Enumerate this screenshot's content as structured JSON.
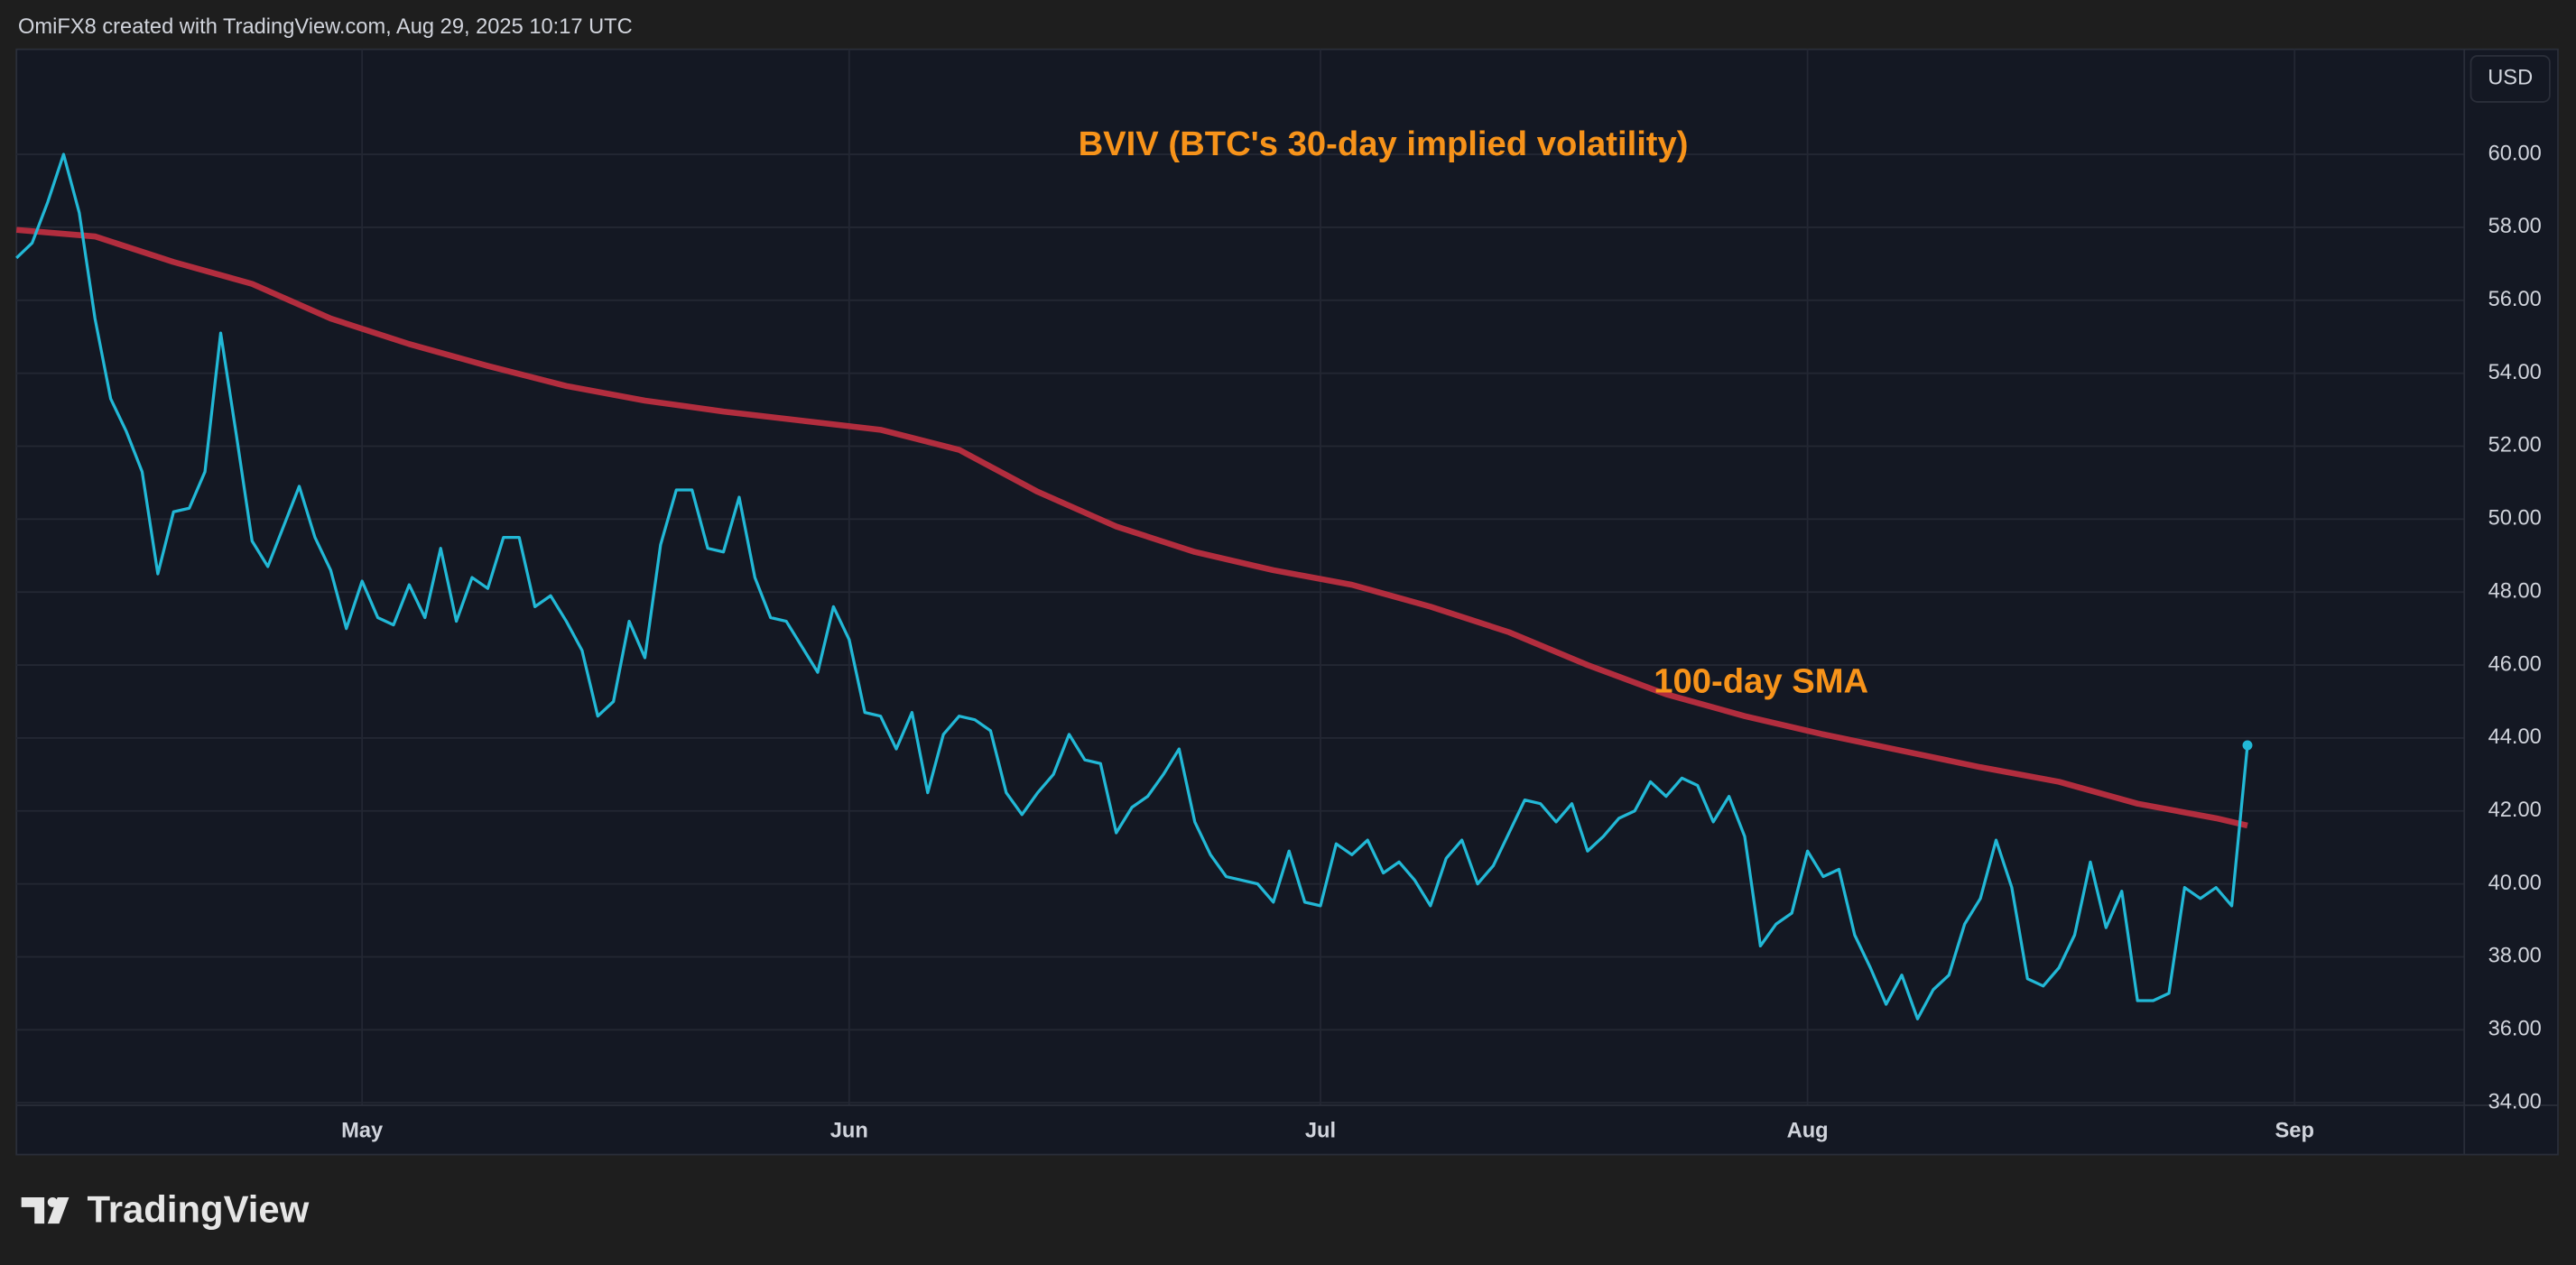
{
  "header": {
    "text": "OmiFX8 created with TradingView.com, Aug 29, 2025 10:17 UTC"
  },
  "branding": {
    "logo_text": "TradingView"
  },
  "chart_data": {
    "type": "line",
    "currency": "USD",
    "annotations": [
      {
        "text": "BVIV (BTC's 30-day implied volatility)"
      },
      {
        "text": "100-day SMA"
      }
    ],
    "xlim": [
      99,
      254.8
    ],
    "xticks": [
      {
        "value": 121,
        "label": "May"
      },
      {
        "value": 152,
        "label": "Jun"
      },
      {
        "value": 182,
        "label": "Jul"
      },
      {
        "value": 213,
        "label": "Aug"
      },
      {
        "value": 244,
        "label": "Sep"
      }
    ],
    "ylim": [
      33.93,
      62.88
    ],
    "yticks": [
      {
        "value": 34,
        "label": "34.00"
      },
      {
        "value": 36,
        "label": "36.00"
      },
      {
        "value": 38,
        "label": "38.00"
      },
      {
        "value": 40,
        "label": "40.00"
      },
      {
        "value": 42,
        "label": "42.00"
      },
      {
        "value": 44,
        "label": "44.00"
      },
      {
        "value": 46,
        "label": "46.00"
      },
      {
        "value": 48,
        "label": "48.00"
      },
      {
        "value": 50,
        "label": "50.00"
      },
      {
        "value": 52,
        "label": "52.00"
      },
      {
        "value": 54,
        "label": "54.00"
      },
      {
        "value": 56,
        "label": "56.00"
      },
      {
        "value": 58,
        "label": "58.00"
      },
      {
        "value": 60,
        "label": "60.00"
      }
    ],
    "grid": true,
    "series": [
      {
        "color": "#22b8d6",
        "last_point_marker": true,
        "x": [
          99,
          100,
          101,
          102,
          103,
          104,
          105,
          106,
          107,
          108,
          109,
          110,
          111,
          112,
          113,
          114,
          115,
          116,
          117,
          118,
          119,
          120,
          121,
          122,
          123,
          124,
          125,
          126,
          127,
          128,
          129,
          130,
          131,
          132,
          133,
          134,
          135,
          136,
          137,
          138,
          139,
          140,
          141,
          142,
          143,
          144,
          145,
          146,
          147,
          148,
          149,
          150,
          151,
          152,
          153,
          154,
          155,
          156,
          157,
          158,
          159,
          160,
          161,
          162,
          163,
          164,
          165,
          166,
          167,
          168,
          169,
          170,
          171,
          172,
          173,
          174,
          175,
          176,
          177,
          178,
          179,
          180,
          181,
          182,
          183,
          184,
          185,
          186,
          187,
          188,
          189,
          190,
          191,
          192,
          193,
          194,
          195,
          196,
          197,
          198,
          199,
          200,
          201,
          202,
          203,
          204,
          205,
          206,
          207,
          208,
          209,
          210,
          211,
          212,
          213,
          214,
          215,
          216,
          217,
          218,
          219,
          220,
          221,
          222,
          223,
          224,
          225,
          226,
          227,
          228,
          229,
          230,
          231,
          232,
          233,
          234,
          235,
          236,
          237,
          238,
          239,
          240,
          241
        ],
        "values": [
          57.16,
          57.57,
          58.7,
          60.0,
          58.4,
          55.5,
          53.3,
          52.4,
          51.3,
          48.5,
          50.2,
          50.3,
          51.3,
          55.1,
          52.3,
          49.4,
          48.7,
          49.8,
          50.9,
          49.5,
          48.6,
          47.0,
          48.3,
          47.3,
          47.1,
          48.2,
          47.3,
          49.2,
          47.2,
          48.4,
          48.1,
          49.5,
          49.5,
          47.6,
          47.9,
          47.2,
          46.4,
          44.6,
          45.0,
          47.2,
          46.2,
          49.3,
          50.8,
          50.8,
          49.2,
          49.1,
          50.6,
          48.4,
          47.3,
          47.2,
          46.5,
          45.8,
          47.6,
          46.7,
          44.7,
          44.6,
          43.7,
          44.7,
          42.5,
          44.1,
          44.6,
          44.5,
          44.2,
          42.5,
          41.9,
          42.5,
          43.0,
          44.1,
          43.4,
          43.3,
          41.4,
          42.1,
          42.4,
          43.0,
          43.7,
          41.7,
          40.8,
          40.2,
          40.1,
          40.0,
          39.5,
          40.9,
          39.5,
          39.4,
          41.1,
          40.8,
          41.2,
          40.3,
          40.6,
          40.1,
          39.4,
          40.7,
          41.2,
          40.0,
          40.5,
          41.4,
          42.3,
          42.2,
          41.7,
          42.2,
          40.9,
          41.3,
          41.8,
          42.0,
          42.8,
          42.4,
          42.9,
          42.7,
          41.7,
          42.4,
          41.3,
          38.3,
          38.9,
          39.2,
          40.9,
          40.2,
          40.4,
          38.6,
          37.7,
          36.7,
          37.5,
          36.3,
          37.1,
          37.5,
          38.9,
          39.6,
          41.2,
          39.9,
          37.4,
          37.2,
          37.7,
          38.6,
          40.6,
          38.8,
          39.8,
          36.8,
          36.8,
          37.0,
          39.9,
          39.6,
          39.9,
          39.4,
          43.8
        ]
      },
      {
        "color": "#b22d3e",
        "x": [
          99,
          104,
          109,
          114,
          119,
          124,
          129,
          134,
          139,
          144,
          149,
          154,
          159,
          164,
          169,
          174,
          179,
          184,
          189,
          194,
          199,
          204,
          209,
          214,
          219,
          224,
          229,
          234,
          239,
          241
        ],
        "values": [
          57.93,
          57.75,
          57.05,
          56.45,
          55.5,
          54.8,
          54.2,
          53.65,
          53.25,
          52.95,
          52.7,
          52.45,
          51.9,
          50.75,
          49.8,
          49.1,
          48.6,
          48.2,
          47.6,
          46.9,
          46.0,
          45.2,
          44.6,
          44.1,
          43.65,
          43.2,
          42.8,
          42.2,
          41.8,
          41.6
        ]
      }
    ]
  }
}
